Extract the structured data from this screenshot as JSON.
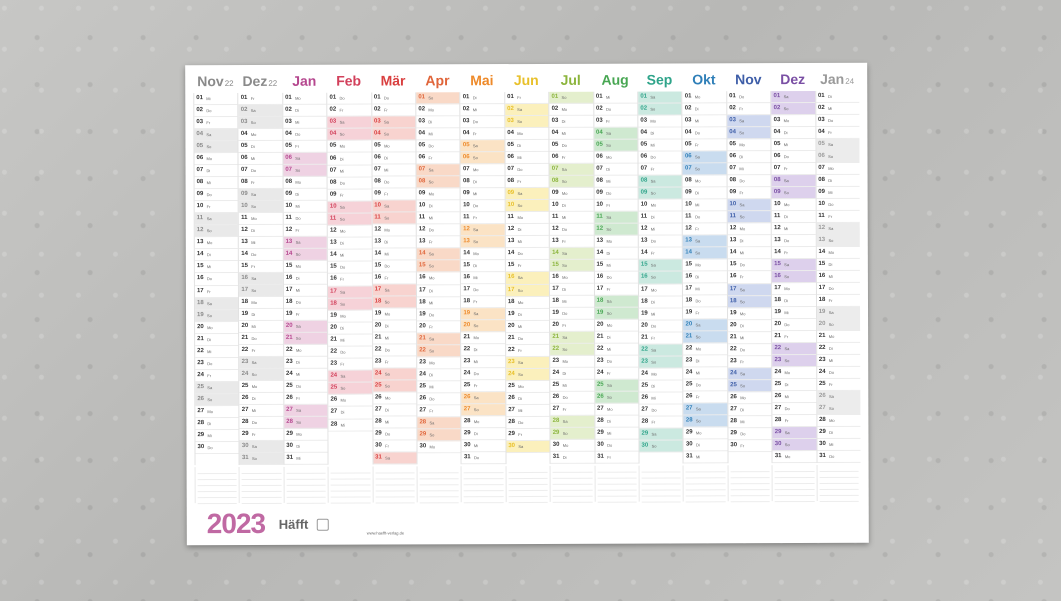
{
  "calendar": {
    "year": "2023",
    "brand": "Häfft",
    "website": "www.haefft-verlag.de",
    "months": [
      {
        "name": "Nov",
        "year": "22",
        "color": "#8a8a8a",
        "tint": "#e9e9e9",
        "days": 30,
        "start": 2
      },
      {
        "name": "Dez",
        "year": "22",
        "color": "#8a8a8a",
        "tint": "#e9e9e9",
        "days": 31,
        "start": 4
      },
      {
        "name": "Jan",
        "year": "",
        "color": "#b5468e",
        "tint": "#efd2e3",
        "days": 31,
        "start": 0
      },
      {
        "name": "Feb",
        "year": "",
        "color": "#d2405b",
        "tint": "#f6d2d8",
        "days": 28,
        "start": 3
      },
      {
        "name": "Mär",
        "year": "",
        "color": "#d93f3f",
        "tint": "#f8d3cf",
        "days": 31,
        "start": 3
      },
      {
        "name": "Apr",
        "year": "",
        "color": "#e0653a",
        "tint": "#f9d9c7",
        "days": 30,
        "start": 6
      },
      {
        "name": "Mai",
        "year": "",
        "color": "#ee8a2a",
        "tint": "#fbe3c5",
        "days": 31,
        "start": 1
      },
      {
        "name": "Jun",
        "year": "",
        "color": "#e8c02a",
        "tint": "#fbf0bc",
        "days": 30,
        "start": 4
      },
      {
        "name": "Jul",
        "year": "",
        "color": "#8bb43b",
        "tint": "#e4efcd",
        "days": 31,
        "start": 6
      },
      {
        "name": "Aug",
        "year": "",
        "color": "#47a652",
        "tint": "#cfe9d0",
        "days": 31,
        "start": 2
      },
      {
        "name": "Sep",
        "year": "",
        "color": "#2fa48a",
        "tint": "#cbe9e0",
        "days": 30,
        "start": 5
      },
      {
        "name": "Okt",
        "year": "",
        "color": "#2f7fb8",
        "tint": "#c9dcef",
        "days": 31,
        "start": 0
      },
      {
        "name": "Nov",
        "year": "",
        "color": "#3e5ea8",
        "tint": "#cfd8ef",
        "days": 30,
        "start": 3
      },
      {
        "name": "Dez",
        "year": "",
        "color": "#7a4fa4",
        "tint": "#ddd0ec",
        "days": 31,
        "start": 5
      },
      {
        "name": "Jan",
        "year": "24",
        "color": "#9a9a9a",
        "tint": "#ececec",
        "days": 31,
        "start": 1
      }
    ],
    "weekdays": [
      "Mo",
      "Di",
      "Mi",
      "Do",
      "Fr",
      "Sa",
      "So"
    ]
  }
}
